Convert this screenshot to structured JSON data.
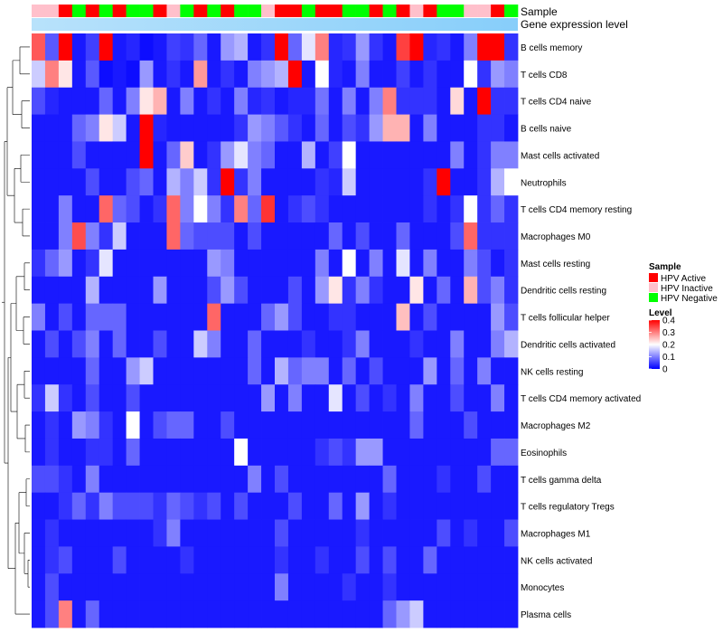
{
  "chart_data": {
    "type": "heatmap",
    "title": "",
    "annotation_tracks": [
      "Sample",
      "Gene expression level"
    ],
    "rows": [
      "B cells memory",
      "T cells CD8",
      "T cells CD4 naive",
      "B cells naive",
      "Mast cells activated",
      "Neutrophils",
      "T cells CD4 memory resting",
      "Macrophages M0",
      "Mast cells resting",
      "Dendritic cells resting",
      "T cells follicular helper",
      "Dendritic cells activated",
      "NK cells resting",
      "T cells CD4 memory activated",
      "Macrophages M2",
      "Eosinophils",
      "T cells gamma delta",
      "T cells regulatory  Tregs",
      "Macrophages M1",
      "NK cells activated",
      "Monocytes",
      "Plasma cells"
    ],
    "sample_groups": [
      "HPV Inactive",
      "HPV Inactive",
      "HPV Active",
      "HPV Negative",
      "HPV Active",
      "HPV Negative",
      "HPV Active",
      "HPV Negative",
      "HPV Negative",
      "HPV Active",
      "HPV Inactive",
      "HPV Negative",
      "HPV Active",
      "HPV Negative",
      "HPV Active",
      "HPV Negative",
      "HPV Negative",
      "HPV Inactive",
      "HPV Active",
      "HPV Active",
      "HPV Negative",
      "HPV Active",
      "HPV Active",
      "HPV Negative",
      "HPV Negative",
      "HPV Active",
      "HPV Negative",
      "HPV Active",
      "HPV Inactive",
      "HPV Active",
      "HPV Negative",
      "HPV Negative",
      "HPV Inactive",
      "HPV Inactive",
      "HPV Active",
      "HPV Negative"
    ],
    "values": [
      [
        0.33,
        0.07,
        0.4,
        0.02,
        0.05,
        0.4,
        0.02,
        0.03,
        0.01,
        0.02,
        0.05,
        0.04,
        0.08,
        0.02,
        0.12,
        0.14,
        0.02,
        0.04,
        0.4,
        0.08,
        0.18,
        0.3,
        0.03,
        0.04,
        0.12,
        0.04,
        0.02,
        0.35,
        0.4,
        0.03,
        0.04,
        0.02,
        0.1,
        0.4,
        0.4,
        0.04
      ],
      [
        0.16,
        0.3,
        0.22,
        0.02,
        0.07,
        0.01,
        0.02,
        0.01,
        0.12,
        0.02,
        0.04,
        0.02,
        0.28,
        0.02,
        0.04,
        0.02,
        0.1,
        0.12,
        0.14,
        0.4,
        0.02,
        0.2,
        0.03,
        0.02,
        0.1,
        0.02,
        0.02,
        0.05,
        0.02,
        0.04,
        0.02,
        0.02,
        0.2,
        0.04,
        0.12,
        0.1
      ],
      [
        0.06,
        0.03,
        0.02,
        0.02,
        0.02,
        0.08,
        0.02,
        0.1,
        0.22,
        0.26,
        0.02,
        0.1,
        0.02,
        0.04,
        0.02,
        0.1,
        0.03,
        0.04,
        0.02,
        0.03,
        0.03,
        0.09,
        0.02,
        0.1,
        0.02,
        0.1,
        0.3,
        0.04,
        0.04,
        0.04,
        0.02,
        0.23,
        0.02,
        0.4,
        0.04,
        0.04
      ],
      [
        0.02,
        0.02,
        0.02,
        0.08,
        0.1,
        0.22,
        0.16,
        0.02,
        0.4,
        0.03,
        0.02,
        0.02,
        0.02,
        0.02,
        0.02,
        0.04,
        0.12,
        0.1,
        0.07,
        0.04,
        0.02,
        0.08,
        0.02,
        0.06,
        0.04,
        0.12,
        0.26,
        0.26,
        0.02,
        0.1,
        0.02,
        0.02,
        0.02,
        0.04,
        0.04,
        0.02
      ],
      [
        0.02,
        0.02,
        0.02,
        0.06,
        0.02,
        0.02,
        0.02,
        0.02,
        0.4,
        0.02,
        0.08,
        0.24,
        0.02,
        0.04,
        0.12,
        0.18,
        0.1,
        0.08,
        0.02,
        0.02,
        0.14,
        0.02,
        0.05,
        0.2,
        0.02,
        0.02,
        0.02,
        0.02,
        0.02,
        0.02,
        0.02,
        0.1,
        0.02,
        0.04,
        0.1,
        0.1
      ],
      [
        0.02,
        0.02,
        0.02,
        0.02,
        0.06,
        0.02,
        0.02,
        0.06,
        0.08,
        0.02,
        0.14,
        0.1,
        0.16,
        0.04,
        0.4,
        0.04,
        0.1,
        0.02,
        0.02,
        0.02,
        0.02,
        0.04,
        0.03,
        0.16,
        0.02,
        0.02,
        0.02,
        0.02,
        0.02,
        0.04,
        0.4,
        0.02,
        0.02,
        0.04,
        0.14,
        0.2
      ],
      [
        0.02,
        0.02,
        0.1,
        0.02,
        0.02,
        0.32,
        0.08,
        0.06,
        0.02,
        0.04,
        0.32,
        0.1,
        0.2,
        0.1,
        0.04,
        0.3,
        0.08,
        0.36,
        0.02,
        0.04,
        0.06,
        0.04,
        0.02,
        0.02,
        0.02,
        0.02,
        0.02,
        0.02,
        0.02,
        0.04,
        0.02,
        0.04,
        0.2,
        0.04,
        0.08,
        0.04
      ],
      [
        0.02,
        0.02,
        0.1,
        0.34,
        0.1,
        0.04,
        0.16,
        0.02,
        0.02,
        0.02,
        0.32,
        0.08,
        0.06,
        0.06,
        0.06,
        0.02,
        0.06,
        0.02,
        0.02,
        0.02,
        0.02,
        0.02,
        0.08,
        0.02,
        0.06,
        0.02,
        0.02,
        0.08,
        0.02,
        0.02,
        0.02,
        0.06,
        0.32,
        0.04,
        0.04,
        0.04
      ],
      [
        0.04,
        0.08,
        0.12,
        0.02,
        0.04,
        0.18,
        0.02,
        0.02,
        0.02,
        0.02,
        0.02,
        0.02,
        0.02,
        0.12,
        0.1,
        0.02,
        0.02,
        0.02,
        0.02,
        0.02,
        0.02,
        0.1,
        0.02,
        0.2,
        0.02,
        0.1,
        0.02,
        0.18,
        0.02,
        0.1,
        0.02,
        0.02,
        0.1,
        0.06,
        0.02,
        0.04
      ],
      [
        0.02,
        0.02,
        0.02,
        0.02,
        0.14,
        0.02,
        0.02,
        0.02,
        0.02,
        0.12,
        0.02,
        0.02,
        0.02,
        0.06,
        0.12,
        0.06,
        0.02,
        0.02,
        0.02,
        0.06,
        0.02,
        0.12,
        0.22,
        0.04,
        0.1,
        0.04,
        0.02,
        0.02,
        0.22,
        0.02,
        0.08,
        0.02,
        0.26,
        0.06,
        0.1,
        0.04
      ],
      [
        0.1,
        0.02,
        0.06,
        0.02,
        0.08,
        0.08,
        0.08,
        0.02,
        0.02,
        0.02,
        0.02,
        0.02,
        0.02,
        0.32,
        0.02,
        0.02,
        0.02,
        0.08,
        0.12,
        0.06,
        0.02,
        0.02,
        0.04,
        0.04,
        0.02,
        0.02,
        0.02,
        0.25,
        0.02,
        0.06,
        0.02,
        0.02,
        0.02,
        0.02,
        0.12,
        0.06
      ],
      [
        0.02,
        0.06,
        0.02,
        0.06,
        0.1,
        0.02,
        0.08,
        0.02,
        0.02,
        0.06,
        0.02,
        0.02,
        0.16,
        0.1,
        0.02,
        0.02,
        0.08,
        0.02,
        0.02,
        0.02,
        0.04,
        0.02,
        0.02,
        0.04,
        0.1,
        0.02,
        0.02,
        0.02,
        0.04,
        0.02,
        0.02,
        0.1,
        0.02,
        0.02,
        0.1,
        0.14
      ],
      [
        0.02,
        0.02,
        0.02,
        0.02,
        0.08,
        0.02,
        0.02,
        0.12,
        0.16,
        0.02,
        0.02,
        0.02,
        0.02,
        0.02,
        0.02,
        0.02,
        0.08,
        0.02,
        0.14,
        0.08,
        0.1,
        0.1,
        0.02,
        0.08,
        0.02,
        0.06,
        0.02,
        0.02,
        0.02,
        0.12,
        0.02,
        0.08,
        0.02,
        0.1,
        0.02,
        0.02
      ],
      [
        0.04,
        0.16,
        0.04,
        0.02,
        0.06,
        0.02,
        0.02,
        0.06,
        0.02,
        0.02,
        0.02,
        0.02,
        0.02,
        0.02,
        0.02,
        0.02,
        0.02,
        0.12,
        0.02,
        0.1,
        0.02,
        0.02,
        0.18,
        0.02,
        0.06,
        0.02,
        0.04,
        0.02,
        0.1,
        0.02,
        0.02,
        0.06,
        0.02,
        0.02,
        0.1,
        0.02
      ],
      [
        0.02,
        0.04,
        0.02,
        0.12,
        0.1,
        0.04,
        0.02,
        0.2,
        0.02,
        0.06,
        0.08,
        0.08,
        0.02,
        0.02,
        0.06,
        0.02,
        0.02,
        0.02,
        0.02,
        0.02,
        0.02,
        0.02,
        0.02,
        0.02,
        0.02,
        0.02,
        0.02,
        0.02,
        0.08,
        0.02,
        0.02,
        0.02,
        0.06,
        0.02,
        0.02,
        0.02
      ],
      [
        0.02,
        0.04,
        0.02,
        0.02,
        0.04,
        0.04,
        0.02,
        0.08,
        0.02,
        0.02,
        0.02,
        0.02,
        0.02,
        0.02,
        0.02,
        0.2,
        0.02,
        0.02,
        0.02,
        0.02,
        0.02,
        0.04,
        0.06,
        0.04,
        0.12,
        0.12,
        0.02,
        0.02,
        0.02,
        0.02,
        0.02,
        0.02,
        0.02,
        0.02,
        0.08,
        0.08
      ],
      [
        0.06,
        0.06,
        0.04,
        0.02,
        0.1,
        0.02,
        0.02,
        0.02,
        0.02,
        0.02,
        0.02,
        0.02,
        0.02,
        0.02,
        0.02,
        0.02,
        0.1,
        0.02,
        0.06,
        0.02,
        0.02,
        0.02,
        0.02,
        0.02,
        0.02,
        0.02,
        0.08,
        0.02,
        0.02,
        0.02,
        0.04,
        0.02,
        0.02,
        0.06,
        0.02,
        0.02
      ],
      [
        0.02,
        0.02,
        0.04,
        0.08,
        0.04,
        0.1,
        0.06,
        0.06,
        0.06,
        0.04,
        0.08,
        0.06,
        0.04,
        0.06,
        0.02,
        0.06,
        0.02,
        0.02,
        0.02,
        0.06,
        0.02,
        0.02,
        0.08,
        0.02,
        0.12,
        0.02,
        0.04,
        0.02,
        0.02,
        0.02,
        0.02,
        0.02,
        0.02,
        0.02,
        0.02,
        0.02
      ],
      [
        0.02,
        0.04,
        0.02,
        0.02,
        0.02,
        0.02,
        0.02,
        0.02,
        0.02,
        0.04,
        0.1,
        0.02,
        0.02,
        0.02,
        0.02,
        0.02,
        0.02,
        0.02,
        0.06,
        0.02,
        0.02,
        0.02,
        0.02,
        0.02,
        0.04,
        0.02,
        0.02,
        0.02,
        0.02,
        0.02,
        0.06,
        0.02,
        0.04,
        0.02,
        0.02,
        0.06
      ],
      [
        0.02,
        0.04,
        0.06,
        0.02,
        0.02,
        0.02,
        0.06,
        0.02,
        0.02,
        0.02,
        0.02,
        0.04,
        0.02,
        0.02,
        0.02,
        0.02,
        0.02,
        0.02,
        0.04,
        0.02,
        0.02,
        0.04,
        0.02,
        0.02,
        0.06,
        0.02,
        0.06,
        0.02,
        0.02,
        0.08,
        0.02,
        0.02,
        0.02,
        0.02,
        0.02,
        0.02
      ],
      [
        0.02,
        0.06,
        0.02,
        0.02,
        0.02,
        0.02,
        0.02,
        0.02,
        0.02,
        0.02,
        0.02,
        0.02,
        0.02,
        0.02,
        0.02,
        0.02,
        0.02,
        0.02,
        0.1,
        0.02,
        0.02,
        0.02,
        0.02,
        0.04,
        0.02,
        0.02,
        0.04,
        0.02,
        0.02,
        0.02,
        0.02,
        0.02,
        0.02,
        0.02,
        0.02,
        0.02
      ],
      [
        0.02,
        0.06,
        0.3,
        0.02,
        0.08,
        0.02,
        0.02,
        0.02,
        0.02,
        0.02,
        0.02,
        0.02,
        0.02,
        0.02,
        0.02,
        0.02,
        0.02,
        0.02,
        0.02,
        0.02,
        0.02,
        0.02,
        0.02,
        0.02,
        0.02,
        0.02,
        0.08,
        0.12,
        0.16,
        0.02,
        0.02,
        0.02,
        0.02,
        0.02,
        0.02,
        0.02
      ]
    ],
    "legend": {
      "sample_title": "Sample",
      "sample_items": [
        {
          "label": "HPV Active",
          "color": "#ff0000"
        },
        {
          "label": "HPV Inactive",
          "color": "#ffc0cb"
        },
        {
          "label": "HPV Negative",
          "color": "#00ff00"
        }
      ],
      "level_title": "Level",
      "level_ticks": [
        "0.4",
        "0.3",
        "0.2",
        "0.1",
        "0"
      ],
      "level_range": [
        0,
        0.4
      ],
      "placement": "right"
    },
    "expression_track_color": "#87cefa",
    "colors": {
      "low": "#0000ff",
      "mid": "#ffffff",
      "high": "#ff0000"
    }
  }
}
